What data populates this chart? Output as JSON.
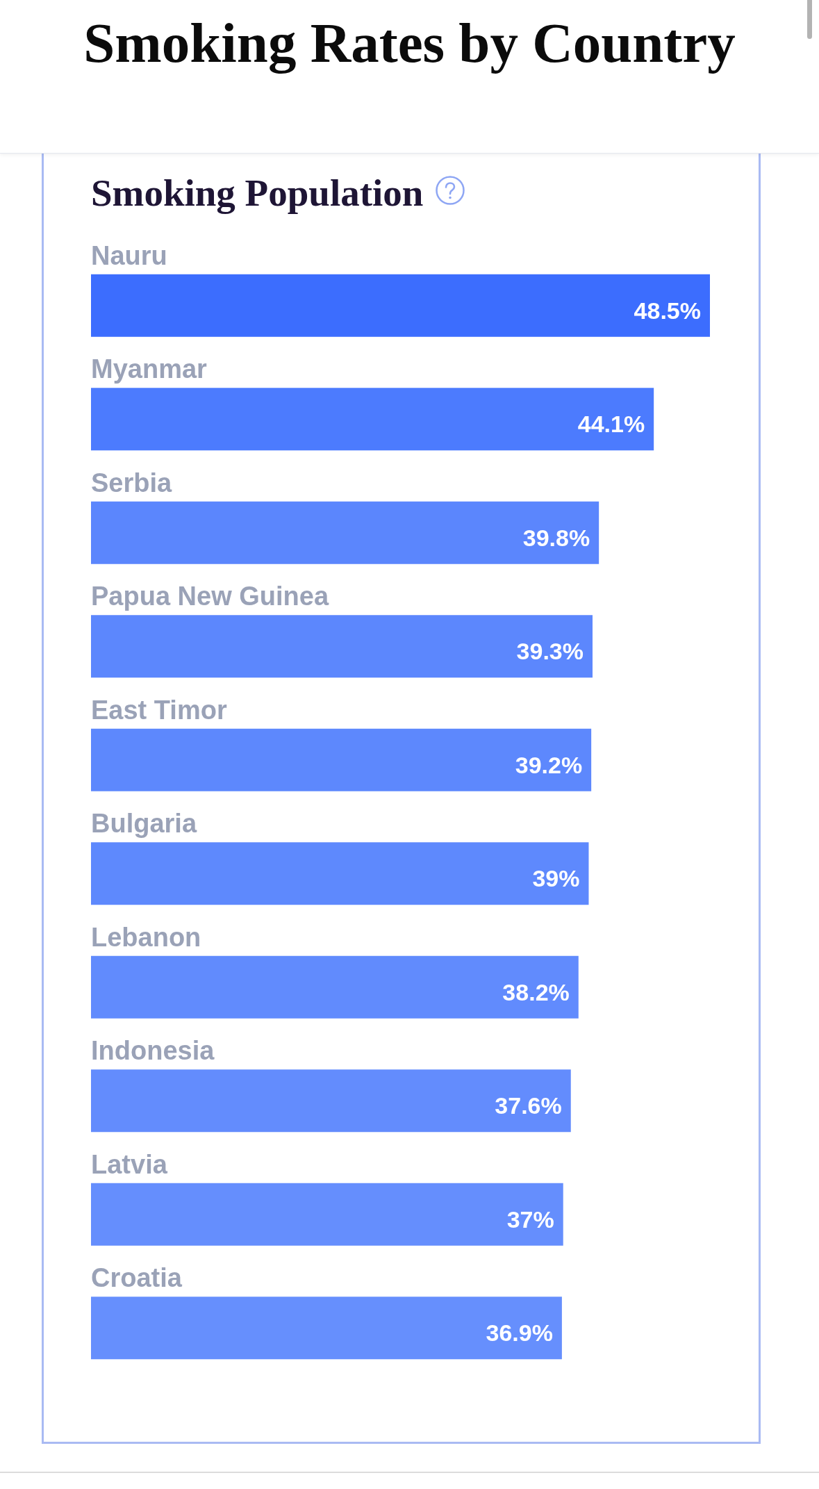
{
  "chart_data": {
    "type": "bar",
    "title": "Smoking Rates by Country",
    "subtitle": "Smoking Population",
    "orientation": "horizontal",
    "categories": [
      "Nauru",
      "Myanmar",
      "Serbia",
      "Papua New Guinea",
      "East Timor",
      "Bulgaria",
      "Lebanon",
      "Indonesia",
      "Latvia",
      "Croatia"
    ],
    "values": [
      48.5,
      44.1,
      39.8,
      39.3,
      39.2,
      39,
      38.2,
      37.6,
      37,
      36.9
    ],
    "value_labels": [
      "48.5%",
      "44.1%",
      "39.8%",
      "39.3%",
      "39.2%",
      "39%",
      "38.2%",
      "37.6%",
      "37%",
      "36.9%"
    ],
    "colors": [
      "#3c6dfe",
      "#4c7bfe",
      "#5b86fd",
      "#5c87fd",
      "#5d88fd",
      "#5e89fd",
      "#618bfd",
      "#638cfd",
      "#658efd",
      "#668ffd"
    ],
    "tick_labels": "y",
    "grid": false
  }
}
